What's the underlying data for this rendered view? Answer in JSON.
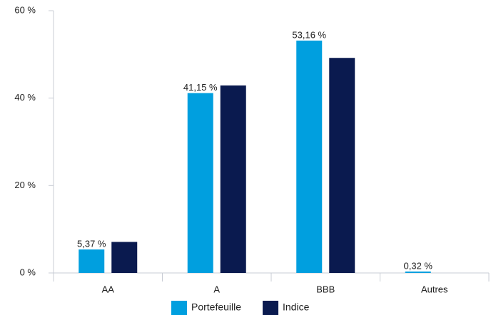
{
  "chart_data": {
    "type": "bar",
    "categories": [
      "AA",
      "A",
      "BBB",
      "Autres"
    ],
    "series": [
      {
        "name": "Portefeuille",
        "color": "#009fdf",
        "values": [
          5.37,
          41.15,
          53.16,
          0.32
        ],
        "value_labels": [
          "5,37 %",
          "41,15 %",
          "53,16 %",
          "0,32 %"
        ]
      },
      {
        "name": "Indice",
        "color": "#0a1a4f",
        "values": [
          7.1,
          42.9,
          49.2,
          0
        ]
      }
    ],
    "ylim": [
      0,
      60
    ],
    "yticks": [
      {
        "value": 0,
        "label": "0 %"
      },
      {
        "value": 20,
        "label": "20 %"
      },
      {
        "value": 40,
        "label": "40 %"
      },
      {
        "value": 60,
        "label": "60 %"
      }
    ],
    "grid": false,
    "legend": "bottom"
  }
}
